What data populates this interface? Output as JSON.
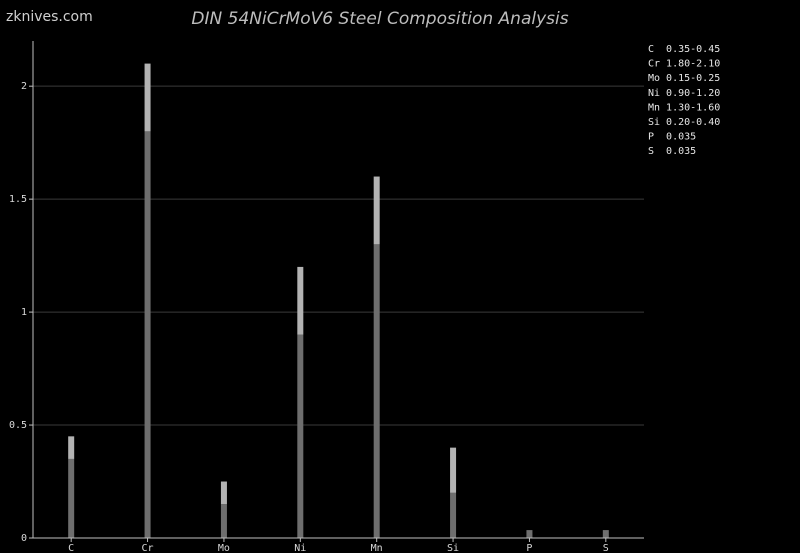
{
  "watermark": "zknives.com",
  "chart_data": {
    "type": "bar",
    "title": "DIN 54NiCrMoV6 Steel Composition Analysis",
    "xlabel": "",
    "ylabel": "",
    "categories": [
      "C",
      "Cr",
      "Mo",
      "Ni",
      "Mn",
      "Si",
      "P",
      "S"
    ],
    "series": [
      {
        "values": [
          0.35,
          1.8,
          0.15,
          0.9,
          1.3,
          0.2,
          0.035,
          0.035
        ]
      },
      {
        "values": [
          0.45,
          2.1,
          0.25,
          1.2,
          1.6,
          0.4,
          0.035,
          0.035
        ]
      }
    ],
    "ylim": [
      0,
      2.2
    ],
    "yticks": [
      0,
      0.5,
      1,
      1.5,
      2
    ],
    "ytick_labels": [
      "0",
      "0.5",
      "1",
      "1.5",
      "2"
    ],
    "grid": true,
    "legend_position": "top-right",
    "legend": [
      "C  0.35-0.45",
      "Cr 1.80-2.10",
      "Mo 0.15-0.25",
      "Ni 0.90-1.20",
      "Mn 1.30-1.60",
      "Si 0.20-0.40",
      "P  0.035",
      "S  0.035"
    ],
    "colors": {
      "background": "#000000",
      "grid": "#3a3a3a",
      "axis": "#bfbfbf",
      "bar_min": "#6e6e6e",
      "bar_range": "#b3b3b3"
    }
  }
}
